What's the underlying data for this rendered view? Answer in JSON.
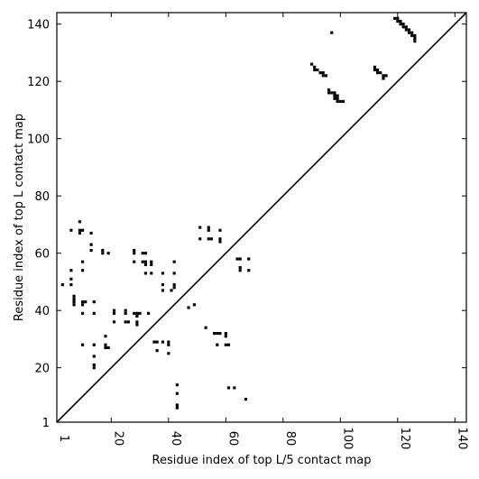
{
  "chart_data": {
    "type": "scatter",
    "xlabel": "Residue index of top L/5 contact map",
    "ylabel": "Residue index of top L contact map",
    "xlim": [
      1,
      144
    ],
    "ylim": [
      1,
      144
    ],
    "x_ticks": [
      1,
      20,
      40,
      60,
      80,
      100,
      120,
      140
    ],
    "y_ticks": [
      1,
      20,
      40,
      60,
      80,
      100,
      120,
      140
    ],
    "grid": false,
    "diagonal_line": true,
    "marker_color": "#000000",
    "series": [
      {
        "values_description_free": true,
        "points": [
          [
            91,
            125
          ],
          [
            90,
            126
          ],
          [
            91,
            124
          ],
          [
            92,
            124
          ],
          [
            93,
            123
          ],
          [
            94,
            123
          ],
          [
            94,
            122
          ],
          [
            95,
            122
          ],
          [
            97,
            137
          ],
          [
            96,
            117
          ],
          [
            96,
            116
          ],
          [
            97,
            116
          ],
          [
            98,
            116
          ],
          [
            98,
            115
          ],
          [
            99,
            115
          ],
          [
            98,
            114
          ],
          [
            99,
            114
          ],
          [
            99,
            113
          ],
          [
            100,
            113
          ],
          [
            101,
            113
          ],
          [
            112,
            125
          ],
          [
            112,
            124
          ],
          [
            113,
            124
          ],
          [
            113,
            123
          ],
          [
            114,
            123
          ],
          [
            115,
            122
          ],
          [
            116,
            122
          ],
          [
            115,
            121
          ],
          [
            119,
            142
          ],
          [
            120,
            142
          ],
          [
            120,
            141
          ],
          [
            121,
            141
          ],
          [
            121,
            140
          ],
          [
            122,
            140
          ],
          [
            122,
            139
          ],
          [
            123,
            139
          ],
          [
            123,
            138
          ],
          [
            124,
            138
          ],
          [
            124,
            137
          ],
          [
            125,
            137
          ],
          [
            125,
            136
          ],
          [
            126,
            136
          ],
          [
            126,
            135
          ],
          [
            126,
            134
          ],
          [
            6,
            68
          ],
          [
            9,
            71
          ],
          [
            9,
            68
          ],
          [
            10,
            68
          ],
          [
            9,
            67
          ],
          [
            13,
            67
          ],
          [
            13,
            63
          ],
          [
            13,
            61
          ],
          [
            17,
            61
          ],
          [
            17,
            60
          ],
          [
            19,
            60
          ],
          [
            10,
            57
          ],
          [
            6,
            54
          ],
          [
            10,
            54
          ],
          [
            6,
            51
          ],
          [
            6,
            49
          ],
          [
            3,
            49
          ],
          [
            7,
            45
          ],
          [
            7,
            44
          ],
          [
            7,
            43
          ],
          [
            7,
            42
          ],
          [
            10,
            43
          ],
          [
            11,
            43
          ],
          [
            10,
            42
          ],
          [
            14,
            43
          ],
          [
            10,
            39
          ],
          [
            14,
            39
          ],
          [
            21,
            40
          ],
          [
            21,
            39
          ],
          [
            21,
            36
          ],
          [
            25,
            40
          ],
          [
            25,
            39
          ],
          [
            25,
            36
          ],
          [
            26,
            36
          ],
          [
            28,
            61
          ],
          [
            28,
            60
          ],
          [
            28,
            57
          ],
          [
            31,
            60
          ],
          [
            32,
            60
          ],
          [
            31,
            57
          ],
          [
            32,
            57
          ],
          [
            32,
            56
          ],
          [
            34,
            57
          ],
          [
            34,
            56
          ],
          [
            32,
            53
          ],
          [
            34,
            53
          ],
          [
            38,
            53
          ],
          [
            42,
            57
          ],
          [
            42,
            53
          ],
          [
            28,
            39
          ],
          [
            29,
            39
          ],
          [
            29,
            38
          ],
          [
            30,
            39
          ],
          [
            29,
            36
          ],
          [
            29,
            35
          ],
          [
            33,
            39
          ],
          [
            38,
            49
          ],
          [
            38,
            47
          ],
          [
            41,
            47
          ],
          [
            42,
            49
          ],
          [
            42,
            48
          ],
          [
            35,
            29
          ],
          [
            36,
            29
          ],
          [
            38,
            29
          ],
          [
            40,
            29
          ],
          [
            40,
            28
          ],
          [
            36,
            26
          ],
          [
            40,
            25
          ],
          [
            47,
            41
          ],
          [
            49,
            42
          ],
          [
            51,
            69
          ],
          [
            51,
            65
          ],
          [
            54,
            69
          ],
          [
            54,
            68
          ],
          [
            54,
            65
          ],
          [
            55,
            65
          ],
          [
            58,
            68
          ],
          [
            58,
            65
          ],
          [
            58,
            64
          ],
          [
            53,
            34
          ],
          [
            56,
            32
          ],
          [
            57,
            32
          ],
          [
            58,
            32
          ],
          [
            60,
            32
          ],
          [
            60,
            31
          ],
          [
            57,
            28
          ],
          [
            60,
            28
          ],
          [
            61,
            28
          ],
          [
            64,
            58
          ],
          [
            65,
            58
          ],
          [
            65,
            55
          ],
          [
            65,
            54
          ],
          [
            68,
            58
          ],
          [
            68,
            54
          ],
          [
            10,
            28
          ],
          [
            14,
            28
          ],
          [
            14,
            24
          ],
          [
            14,
            21
          ],
          [
            14,
            20
          ],
          [
            18,
            31
          ],
          [
            18,
            28
          ],
          [
            18,
            27
          ],
          [
            19,
            27
          ],
          [
            43,
            14
          ],
          [
            43,
            11
          ],
          [
            43,
            7
          ],
          [
            43,
            6
          ],
          [
            61,
            13
          ],
          [
            63,
            13
          ],
          [
            67,
            9
          ]
        ]
      }
    ]
  }
}
